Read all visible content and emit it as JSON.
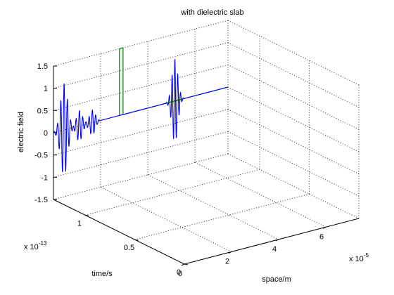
{
  "chart_data": {
    "type": "line",
    "title": "with dielectric slab",
    "xlabel": "space/m",
    "ylabel": "time/s",
    "zlabel": "electric field",
    "x_exponent_label": "x 10",
    "x_exponent_power": "-5",
    "y_exponent_label": "x 10",
    "y_exponent_power": "-13",
    "xlim": [
      0,
      7.4
    ],
    "ylim": [
      0,
      1.32
    ],
    "zlim": [
      -1.5,
      1.5
    ],
    "x_ticks": [
      0,
      2,
      4,
      6
    ],
    "x_tick_labels": [
      "0",
      "2",
      "4",
      "6"
    ],
    "y_ticks": [
      0,
      0.5,
      1
    ],
    "y_tick_labels": [
      "0",
      "0.5",
      "1"
    ],
    "z_ticks": [
      -1.5,
      -1,
      -0.5,
      0,
      0.5,
      1,
      1.5
    ],
    "z_tick_labels": [
      "-1.5",
      "-1",
      "-0.5",
      "0",
      "0.5",
      "1",
      "1.5"
    ],
    "grid": true,
    "time_slice": 1.32,
    "series": [
      {
        "color": "#0000ff",
        "style": "electric-field",
        "x_start": 0.0,
        "x_end": 7.4,
        "packets": [
          {
            "center": 0.45,
            "amplitude": 1.05,
            "width": 0.3,
            "wavelength": 0.14
          },
          {
            "center": 1.1,
            "amplitude": 0.35,
            "width": 0.25,
            "wavelength": 0.14
          },
          {
            "center": 1.65,
            "amplitude": 0.28,
            "width": 0.25,
            "wavelength": 0.14
          },
          {
            "center": 5.15,
            "amplitude": 0.95,
            "width": 0.25,
            "wavelength": 0.12
          }
        ]
      },
      {
        "color": "#008000",
        "style": "dielectric-slab-profile",
        "x_start": 2.8,
        "x_end": 7.4,
        "slab_start": 2.8,
        "slab_end": 2.95,
        "slab_height": 1.5
      }
    ]
  }
}
